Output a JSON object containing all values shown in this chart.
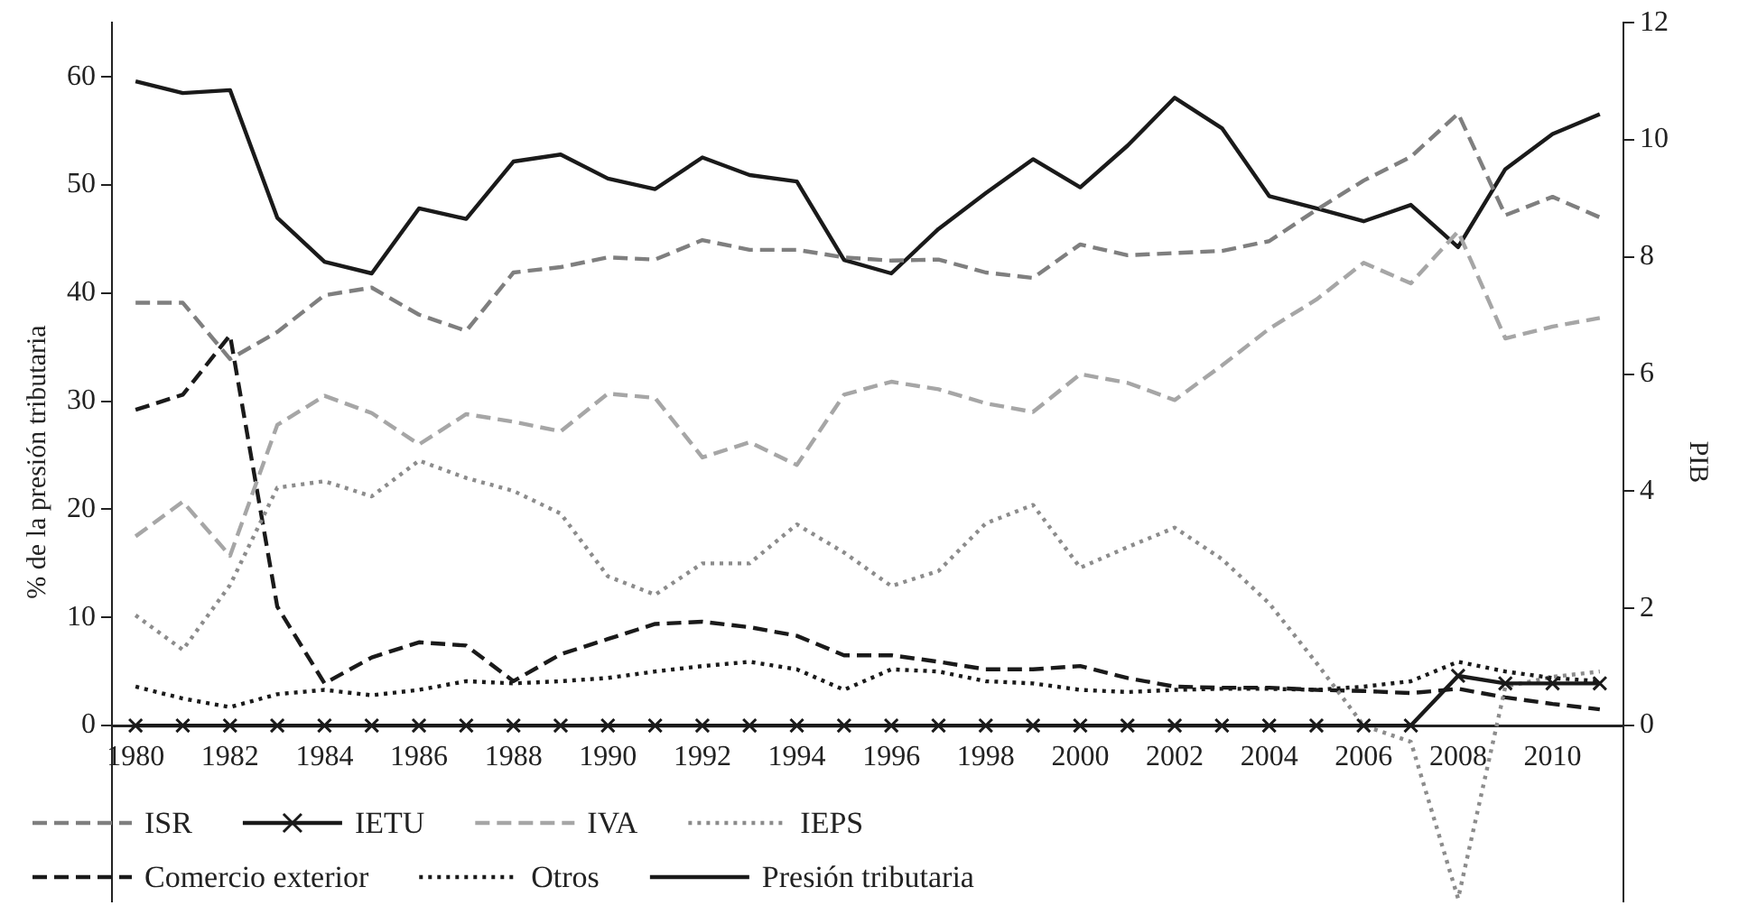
{
  "chart_data": {
    "type": "line",
    "ylabel": "% de la presión tributaria",
    "y2label": "PIB",
    "legend": "bottom left",
    "grid": false,
    "x": [
      1980,
      1981,
      1982,
      1983,
      1984,
      1985,
      1986,
      1987,
      1988,
      1989,
      1990,
      1991,
      1992,
      1993,
      1994,
      1995,
      1996,
      1997,
      1998,
      1999,
      2000,
      2001,
      2002,
      2003,
      2004,
      2005,
      2006,
      2007,
      2008,
      2009,
      2010,
      2011
    ],
    "xlim": [
      1979.5,
      2011.5
    ],
    "xticks": [
      1980,
      1982,
      1984,
      1986,
      1988,
      1990,
      1992,
      1994,
      1996,
      1998,
      2000,
      2002,
      2004,
      2006,
      2008,
      2010
    ],
    "ylim": [
      -16.25,
      65
    ],
    "yticks": [
      0,
      10,
      20,
      30,
      40,
      50,
      60
    ],
    "y2lim": [
      -3,
      12
    ],
    "y2ticks": [
      0,
      2,
      4,
      6,
      8,
      10,
      12
    ],
    "series": [
      {
        "name": "ISR",
        "color": "#7f7f7f",
        "line_style": "dashed",
        "marker": "none",
        "values": [
          39.1,
          39.1,
          33.9,
          36.4,
          39.8,
          40.5,
          38.0,
          36.5,
          41.9,
          42.4,
          43.3,
          43.1,
          44.9,
          44.0,
          44.0,
          43.3,
          43.0,
          43.1,
          41.9,
          41.4,
          44.5,
          43.5,
          43.7,
          43.9,
          44.8,
          47.7,
          50.4,
          52.6,
          56.6,
          47.2,
          48.9,
          47.0
        ]
      },
      {
        "name": "IETU",
        "color": "#1a1a1a",
        "line_style": "solid",
        "marker": "cross",
        "values": [
          0,
          0,
          0,
          0,
          0,
          0,
          0,
          0,
          0,
          0,
          0,
          0,
          0,
          0,
          0,
          0,
          0,
          0,
          0,
          0,
          0,
          0,
          0,
          0,
          0,
          0,
          0,
          0,
          4.6,
          3.9,
          3.9,
          3.9
        ]
      },
      {
        "name": "IVA",
        "color": "#a6a6a6",
        "line_style": "dashed",
        "marker": "none",
        "values": [
          17.5,
          20.7,
          15.7,
          27.8,
          30.5,
          28.9,
          26.0,
          28.8,
          28.1,
          27.2,
          30.7,
          30.3,
          24.8,
          26.2,
          24.1,
          30.6,
          31.8,
          31.1,
          29.8,
          29.0,
          32.5,
          31.7,
          30.1,
          33.3,
          36.7,
          39.4,
          42.8,
          40.9,
          45.7,
          35.8,
          36.9,
          37.7
        ]
      },
      {
        "name": "IEPS",
        "color": "#8c8c8c",
        "line_style": "dotted",
        "marker": "none",
        "values": [
          10.2,
          7.0,
          13.0,
          22.0,
          22.6,
          21.2,
          24.5,
          22.9,
          21.7,
          19.6,
          13.8,
          12.1,
          15.0,
          15.0,
          18.6,
          16.0,
          12.9,
          14.3,
          18.7,
          20.4,
          14.6,
          16.5,
          18.3,
          15.4,
          11.3,
          5.8,
          0,
          -1.5,
          -16,
          3.6,
          4.5,
          5.0
        ]
      },
      {
        "name": "Comercio exterior",
        "color": "#1a1a1a",
        "line_style": "dashed",
        "marker": "none",
        "values": [
          29.2,
          30.6,
          36.1,
          11.0,
          3.9,
          6.3,
          7.7,
          7.4,
          4.1,
          6.6,
          8.0,
          9.4,
          9.6,
          9.1,
          8.3,
          6.5,
          6.5,
          5.9,
          5.2,
          5.2,
          5.5,
          4.4,
          3.6,
          3.5,
          3.5,
          3.3,
          3.2,
          3.0,
          3.4,
          2.6,
          2.0,
          1.5
        ]
      },
      {
        "name": "Otros",
        "color": "#1a1a1a",
        "line_style": "dotted",
        "marker": "none",
        "values": [
          3.6,
          2.5,
          1.7,
          2.9,
          3.3,
          2.8,
          3.3,
          4.1,
          3.9,
          4.1,
          4.4,
          5.0,
          5.5,
          5.9,
          5.2,
          3.3,
          5.2,
          5.0,
          4.1,
          3.9,
          3.3,
          3.1,
          3.3,
          3.4,
          3.4,
          3.3,
          3.6,
          4.1,
          5.9,
          5.0,
          4.4,
          4.1
        ]
      },
      {
        "name": "Presión tributaria",
        "color": "#1a1a1a",
        "line_style": "solid",
        "marker": "none",
        "axis": "y2",
        "values": [
          11.0,
          10.8,
          10.85,
          8.67,
          7.92,
          7.72,
          8.83,
          8.65,
          9.63,
          9.75,
          9.34,
          9.16,
          9.7,
          9.4,
          9.29,
          7.95,
          7.72,
          8.48,
          9.09,
          9.67,
          9.19,
          9.9,
          10.72,
          10.2,
          9.04,
          8.83,
          8.61,
          8.89,
          8.17,
          9.5,
          10.1,
          10.44
        ]
      }
    ]
  }
}
